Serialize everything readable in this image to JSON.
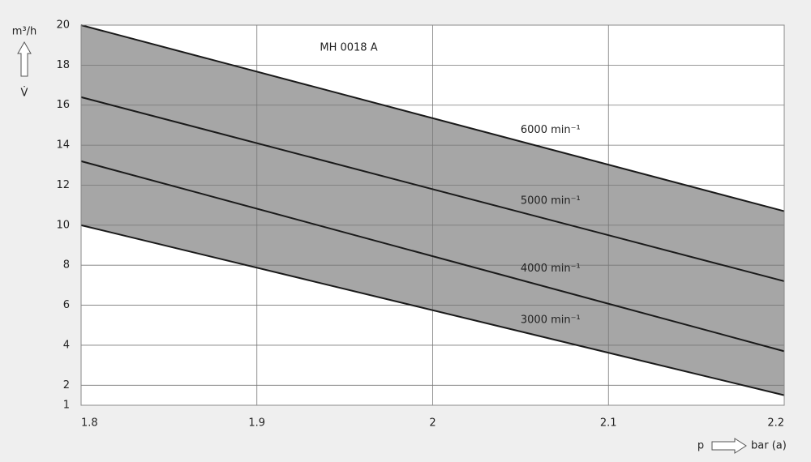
{
  "chart_data": {
    "type": "line",
    "title": "MH 0018 A",
    "y_label": "m³/h",
    "y_symbol": "V̇",
    "x_symbol": "p",
    "x_label": "bar (a)",
    "x": [
      1.8,
      2.2
    ],
    "series": [
      {
        "name": "6000 min⁻¹",
        "color": "#1a1a1a",
        "values": [
          20,
          10.7
        ]
      },
      {
        "name": "5000 min⁻¹",
        "color": "#1a1a1a",
        "values": [
          16.4,
          7.2
        ]
      },
      {
        "name": "4000 min⁻¹",
        "color": "#1a1a1a",
        "values": [
          13.2,
          3.7
        ]
      },
      {
        "name": "3000 min⁻¹",
        "color": "#1a1a1a",
        "values": [
          10,
          1.5
        ]
      }
    ],
    "fill_color": "#a6a6a6",
    "xlim": [
      1.8,
      2.2
    ],
    "xticks": [
      1.8,
      1.9,
      2,
      2.1,
      2.2
    ],
    "ylim": [
      1,
      20
    ],
    "yticks": [
      1,
      2,
      4,
      6,
      8,
      10,
      12,
      14,
      16,
      18,
      20
    ],
    "grid": true
  }
}
